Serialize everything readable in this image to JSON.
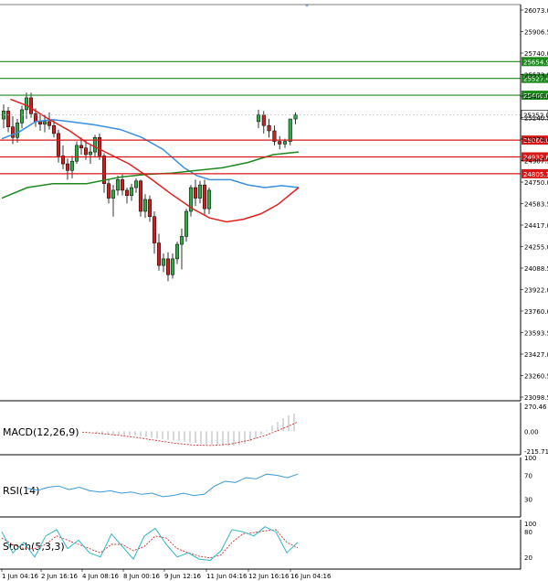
{
  "chart_data": {
    "type": "candlestick",
    "main": {
      "ylim": [
        23098.5,
        26073.0
      ],
      "y_ticks": [
        "26073.0",
        "25906.5",
        "25740.0",
        "25573.5",
        "25407.0",
        "25240.5",
        "25074.0",
        "24907.5",
        "24750.0",
        "24583.5",
        "24417.0",
        "24255.0",
        "24088.5",
        "23922.0",
        "23760.0",
        "23593.5",
        "23427.0",
        "23260.5",
        "23098.5"
      ],
      "x_ticks": [
        "1 Jun 04:16",
        "2 Jun 16:16",
        "4 Jun 08:16",
        "8 Jun 00:16",
        "9 Jun 12:16",
        "11 Jun 04:16",
        "12 Jun 16:16",
        "16 Jun 04:16"
      ],
      "current_price": "25252.0",
      "green_levels": [
        {
          "label": "25654.9",
          "value": 25654.9
        },
        {
          "label": "25527.4",
          "value": 25527.4
        },
        {
          "label": "25400.0",
          "value": 25400.0
        }
      ],
      "red_levels": [
        {
          "label": "25060.0",
          "value": 25060.0
        },
        {
          "label": "24932.6",
          "value": 24932.6
        },
        {
          "label": "24805.1",
          "value": 24805.1
        }
      ],
      "candles": [
        [
          25220,
          25330,
          25150,
          25280
        ],
        [
          25280,
          25310,
          25120,
          25160
        ],
        [
          25160,
          25240,
          25030,
          25080
        ],
        [
          25080,
          25220,
          25040,
          25190
        ],
        [
          25190,
          25320,
          25150,
          25290
        ],
        [
          25290,
          25420,
          25220,
          25380
        ],
        [
          25380,
          25420,
          25230,
          25260
        ],
        [
          25260,
          25300,
          25160,
          25200
        ],
        [
          25200,
          25260,
          25130,
          25180
        ],
        [
          25180,
          25250,
          25120,
          25200
        ],
        [
          25200,
          25270,
          25140,
          25170
        ],
        [
          25170,
          25210,
          25080,
          25110
        ],
        [
          25110,
          25140,
          24890,
          24940
        ],
        [
          24940,
          25020,
          24840,
          24880
        ],
        [
          24880,
          24920,
          24760,
          24830
        ],
        [
          24830,
          24940,
          24770,
          24900
        ],
        [
          24900,
          25050,
          24880,
          25020
        ],
        [
          25020,
          25080,
          24950,
          25000
        ],
        [
          25000,
          25060,
          24910,
          24950
        ],
        [
          24950,
          25020,
          24880,
          24970
        ],
        [
          24970,
          25100,
          24930,
          25080
        ],
        [
          25080,
          25110,
          24910,
          24940
        ],
        [
          24940,
          24960,
          24660,
          24730
        ],
        [
          24730,
          24760,
          24580,
          24620
        ],
        [
          24620,
          24720,
          24480,
          24680
        ],
        [
          24680,
          24790,
          24640,
          24760
        ],
        [
          24760,
          24800,
          24640,
          24680
        ],
        [
          24680,
          24700,
          24580,
          24640
        ],
        [
          24640,
          24730,
          24600,
          24700
        ],
        [
          24700,
          24770,
          24660,
          24750
        ],
        [
          24750,
          24760,
          24480,
          24520
        ],
        [
          24520,
          24650,
          24470,
          24610
        ],
        [
          24610,
          24640,
          24440,
          24480
        ],
        [
          24480,
          24520,
          24200,
          24280
        ],
        [
          24280,
          24350,
          24070,
          24110
        ],
        [
          24110,
          24200,
          24060,
          24160
        ],
        [
          24160,
          24210,
          23990,
          24040
        ],
        [
          24040,
          24200,
          24010,
          24160
        ],
        [
          24160,
          24290,
          24120,
          24270
        ],
        [
          24270,
          24390,
          24080,
          24330
        ],
        [
          24330,
          24540,
          24290,
          24520
        ],
        [
          24520,
          24720,
          24480,
          24700
        ],
        [
          24700,
          24760,
          24560,
          24620
        ],
        [
          24620,
          24750,
          24580,
          24720
        ],
        [
          24720,
          24760,
          24490,
          24540
        ],
        [
          24540,
          24700,
          24500,
          24680
        ],
        [
          25200,
          25290,
          25150,
          25250
        ],
        [
          25250,
          25280,
          25110,
          25170
        ],
        [
          25170,
          25220,
          25080,
          25130
        ],
        [
          25130,
          25170,
          25020,
          25050
        ],
        [
          25050,
          25090,
          24990,
          25030
        ],
        [
          25030,
          25070,
          25000,
          25050
        ],
        [
          25050,
          25220,
          25020,
          25220
        ],
        [
          25220,
          25270,
          25180,
          25250
        ]
      ],
      "ma_blue": [
        [
          0,
          25070
        ],
        [
          4,
          25120
        ],
        [
          8,
          25200
        ],
        [
          12,
          25215
        ],
        [
          16,
          25200
        ],
        [
          22,
          25175
        ],
        [
          28,
          25140
        ],
        [
          33,
          25080
        ],
        [
          38,
          24990
        ],
        [
          43,
          24850
        ],
        [
          46,
          24790
        ],
        [
          49,
          24760
        ],
        [
          54,
          24760
        ],
        [
          58,
          24720
        ],
        [
          62,
          24700
        ],
        [
          66,
          24715
        ],
        [
          70,
          24700
        ]
      ],
      "ma_green": [
        [
          0,
          24620
        ],
        [
          6,
          24700
        ],
        [
          12,
          24730
        ],
        [
          20,
          24730
        ],
        [
          28,
          24780
        ],
        [
          34,
          24800
        ],
        [
          40,
          24810
        ],
        [
          46,
          24830
        ],
        [
          52,
          24850
        ],
        [
          58,
          24890
        ],
        [
          64,
          24950
        ],
        [
          70,
          24970
        ]
      ],
      "ma_red": [
        [
          2,
          25370
        ],
        [
          6,
          25320
        ],
        [
          11,
          25220
        ],
        [
          16,
          25130
        ],
        [
          20,
          25040
        ],
        [
          25,
          24960
        ],
        [
          30,
          24880
        ],
        [
          35,
          24770
        ],
        [
          40,
          24650
        ],
        [
          45,
          24540
        ],
        [
          49,
          24470
        ],
        [
          53,
          24440
        ],
        [
          57,
          24460
        ],
        [
          61,
          24500
        ],
        [
          65,
          24570
        ],
        [
          70,
          24700
        ]
      ]
    },
    "macd": {
      "label": "MACD(12,26,9)",
      "y_ticks": [
        "270.46",
        "0.00",
        "-215.71"
      ],
      "ylim": [
        -215.71,
        270.46
      ],
      "histogram": [
        0,
        -18,
        -28,
        -35,
        -40,
        -42,
        -44,
        -45,
        -48,
        -55,
        -62,
        -70,
        -78,
        -85,
        -92,
        -100,
        -108,
        -115,
        -122,
        -130,
        -138,
        -145,
        -150,
        -155,
        -158,
        -160,
        -158,
        -150,
        -135,
        -110,
        -80,
        -40,
        10,
        60,
        100,
        140,
        170,
        190
      ],
      "signal": [
        [
          0,
          -10
        ],
        [
          6,
          -25
        ],
        [
          12,
          -45
        ],
        [
          18,
          -70
        ],
        [
          24,
          -100
        ],
        [
          30,
          -130
        ],
        [
          36,
          -150
        ],
        [
          42,
          -155
        ],
        [
          48,
          -140
        ],
        [
          54,
          -100
        ],
        [
          60,
          -40
        ],
        [
          66,
          40
        ],
        [
          70,
          100
        ]
      ]
    },
    "rsi": {
      "label": "RSI(14)",
      "y_ticks": [
        "100",
        "70",
        "30"
      ],
      "ylim": [
        0,
        100
      ],
      "values": [
        [
          0,
          48
        ],
        [
          4,
          45
        ],
        [
          8,
          50
        ],
        [
          12,
          52
        ],
        [
          16,
          46
        ],
        [
          20,
          50
        ],
        [
          24,
          44
        ],
        [
          28,
          42
        ],
        [
          32,
          44
        ],
        [
          36,
          40
        ],
        [
          40,
          42
        ],
        [
          44,
          38
        ],
        [
          48,
          40
        ],
        [
          52,
          34
        ],
        [
          56,
          36
        ],
        [
          60,
          40
        ],
        [
          64,
          36
        ],
        [
          68,
          38
        ],
        [
          72,
          52
        ],
        [
          76,
          60
        ],
        [
          80,
          58
        ],
        [
          84,
          66
        ],
        [
          88,
          64
        ],
        [
          92,
          72
        ],
        [
          96,
          70
        ],
        [
          100,
          66
        ],
        [
          104,
          72
        ]
      ]
    },
    "stoch": {
      "label": "Stoch(5,3,3)",
      "y_ticks": [
        "100",
        "80",
        "20"
      ],
      "ylim": [
        0,
        100
      ],
      "k": [
        [
          0,
          80
        ],
        [
          3,
          30
        ],
        [
          6,
          55
        ],
        [
          9,
          20
        ],
        [
          12,
          70
        ],
        [
          15,
          85
        ],
        [
          18,
          40
        ],
        [
          21,
          60
        ],
        [
          24,
          30
        ],
        [
          27,
          20
        ],
        [
          30,
          75
        ],
        [
          33,
          45
        ],
        [
          36,
          15
        ],
        [
          39,
          70
        ],
        [
          42,
          88
        ],
        [
          45,
          50
        ],
        [
          48,
          20
        ],
        [
          51,
          30
        ],
        [
          54,
          15
        ],
        [
          57,
          12
        ],
        [
          60,
          35
        ],
        [
          63,
          85
        ],
        [
          66,
          80
        ],
        [
          69,
          70
        ],
        [
          72,
          92
        ],
        [
          75,
          80
        ],
        [
          78,
          30
        ],
        [
          81,
          55
        ]
      ],
      "d": [
        [
          0,
          65
        ],
        [
          3,
          50
        ],
        [
          6,
          40
        ],
        [
          9,
          40
        ],
        [
          12,
          50
        ],
        [
          15,
          70
        ],
        [
          18,
          60
        ],
        [
          21,
          50
        ],
        [
          24,
          40
        ],
        [
          27,
          30
        ],
        [
          30,
          50
        ],
        [
          33,
          50
        ],
        [
          36,
          35
        ],
        [
          39,
          45
        ],
        [
          42,
          70
        ],
        [
          45,
          65
        ],
        [
          48,
          40
        ],
        [
          51,
          30
        ],
        [
          54,
          22
        ],
        [
          57,
          18
        ],
        [
          60,
          25
        ],
        [
          63,
          55
        ],
        [
          66,
          75
        ],
        [
          69,
          78
        ],
        [
          72,
          82
        ],
        [
          75,
          85
        ],
        [
          78,
          55
        ],
        [
          81,
          42
        ]
      ]
    }
  },
  "colors": {
    "bull": "#37a64a",
    "bear": "#cc1f1f",
    "ma_blue": "#3a8fde",
    "ma_green": "#1e8a1e",
    "ma_red": "#e02020",
    "level_green": "#1d8a1d",
    "level_red": "#d81818",
    "macd_signal": "#d03030",
    "rsi_line": "#3a9ad8",
    "stoch_k": "#2fb6c0",
    "stoch_d": "#d03030"
  }
}
